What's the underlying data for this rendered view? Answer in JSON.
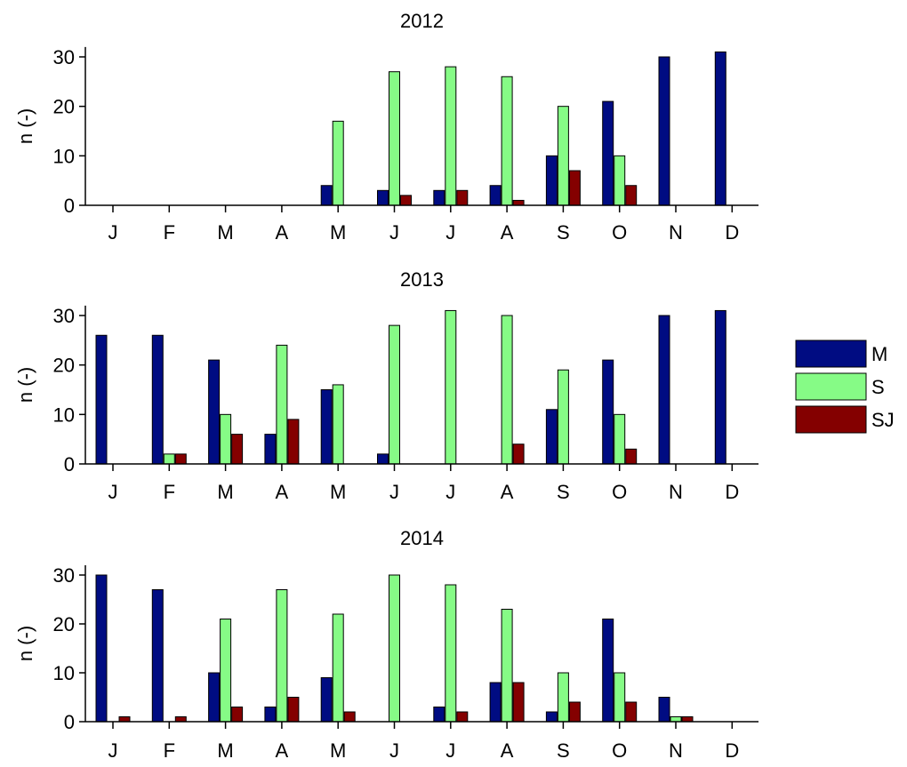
{
  "colors": {
    "M": "#000c82",
    "S": "#86fb86",
    "SJ": "#840000",
    "axis": "#000000"
  },
  "legend": {
    "placement": "right",
    "entries": [
      "M",
      "S",
      "SJ"
    ]
  },
  "chart_data": [
    {
      "type": "bar",
      "title": "2012",
      "ylabel": "n (-)",
      "xlabel": "",
      "ylim": [
        0,
        32
      ],
      "yticks": [
        0,
        10,
        20,
        30
      ],
      "categories": [
        "J",
        "F",
        "M",
        "A",
        "M",
        "J",
        "J",
        "A",
        "S",
        "O",
        "N",
        "D"
      ],
      "series": [
        {
          "name": "M",
          "values": [
            0,
            0,
            0,
            0,
            4,
            3,
            3,
            4,
            10,
            21,
            30,
            31
          ]
        },
        {
          "name": "S",
          "values": [
            0,
            0,
            0,
            0,
            17,
            27,
            28,
            26,
            20,
            10,
            0,
            0
          ]
        },
        {
          "name": "SJ",
          "values": [
            0,
            0,
            0,
            0,
            0,
            2,
            3,
            1,
            7,
            4,
            0,
            0
          ]
        }
      ]
    },
    {
      "type": "bar",
      "title": "2013",
      "ylabel": "n (-)",
      "xlabel": "",
      "ylim": [
        0,
        32
      ],
      "yticks": [
        0,
        10,
        20,
        30
      ],
      "categories": [
        "J",
        "F",
        "M",
        "A",
        "M",
        "J",
        "J",
        "A",
        "S",
        "O",
        "N",
        "D"
      ],
      "series": [
        {
          "name": "M",
          "values": [
            26,
            26,
            21,
            6,
            15,
            2,
            0,
            0,
            11,
            21,
            30,
            31
          ]
        },
        {
          "name": "S",
          "values": [
            0,
            2,
            10,
            24,
            16,
            28,
            31,
            30,
            19,
            10,
            0,
            0
          ]
        },
        {
          "name": "SJ",
          "values": [
            0,
            2,
            6,
            9,
            0,
            0,
            0,
            4,
            0,
            3,
            0,
            0
          ]
        }
      ]
    },
    {
      "type": "bar",
      "title": "2014",
      "ylabel": "n (-)",
      "xlabel": "",
      "ylim": [
        0,
        32
      ],
      "yticks": [
        0,
        10,
        20,
        30
      ],
      "categories": [
        "J",
        "F",
        "M",
        "A",
        "M",
        "J",
        "J",
        "A",
        "S",
        "O",
        "N",
        "D"
      ],
      "series": [
        {
          "name": "M",
          "values": [
            30,
            27,
            10,
            3,
            9,
            0,
            3,
            8,
            2,
            21,
            5,
            0
          ]
        },
        {
          "name": "S",
          "values": [
            0,
            0,
            21,
            27,
            22,
            30,
            28,
            23,
            10,
            10,
            1,
            0
          ]
        },
        {
          "name": "SJ",
          "values": [
            1,
            1,
            3,
            5,
            2,
            0,
            2,
            8,
            4,
            4,
            1,
            0
          ]
        }
      ]
    }
  ]
}
